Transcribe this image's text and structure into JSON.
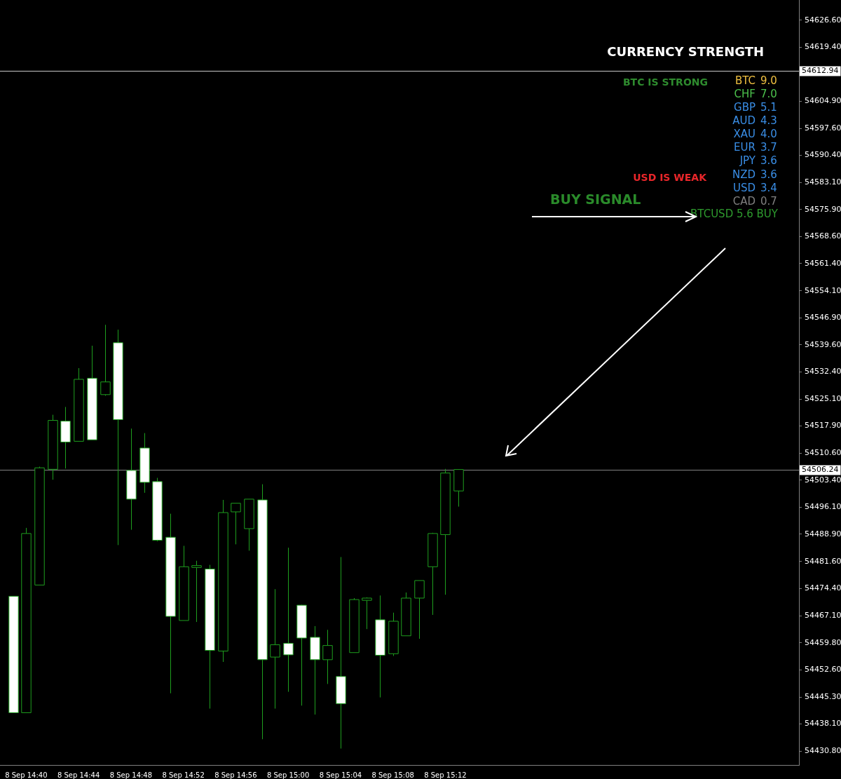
{
  "chart_data": {
    "type": "candlestick",
    "title": "CURRENCY STRENGTH",
    "x": [
      "--09-08T14:39",
      "--09-08T14:40",
      "--09-08T14:41",
      "--09-08T14:42",
      "--09-08T14:43",
      "--09-08T14:44",
      "--09-08T14:45",
      "--09-08T14:46",
      "--09-08T14:47",
      "--09-08T14:48",
      "--09-08T14:49",
      "--09-08T14:50",
      "--09-08T14:51",
      "--09-08T14:52",
      "--09-08T14:53",
      "--09-08T14:54",
      "--09-08T14:55",
      "--09-08T14:56",
      "--09-08T14:57",
      "--09-08T14:58",
      "--09-08T14:59",
      "--09-08T15:00",
      "--09-08T15:01",
      "--09-08T15:02",
      "--09-08T15:03",
      "--09-08T15:04",
      "--09-08T15:05",
      "--09-08T15:06",
      "--09-08T15:07",
      "--09-08T15:08",
      "--09-08T15:09",
      "--09-08T15:10",
      "--09-08T15:11",
      "--09-08T15:12",
      "--09-08T15:13"
    ],
    "ohlc": [
      [
        54472.3,
        54472.3,
        54441.0,
        54441.1
      ],
      [
        54441.1,
        54490.6,
        54441.1,
        54489.1
      ],
      [
        54475.3,
        54507.0,
        54475.3,
        54506.7
      ],
      [
        54506.3,
        54520.9,
        54503.5,
        54519.4
      ],
      [
        54519.2,
        54523.0,
        54506.5,
        54513.6
      ],
      [
        54513.8,
        54533.4,
        54513.8,
        54530.4
      ],
      [
        54530.7,
        54539.4,
        54514.2,
        54514.2
      ],
      [
        54526.3,
        54545.0,
        54526.0,
        54529.7
      ],
      [
        54540.2,
        54543.7,
        54486.0,
        54519.6
      ],
      [
        54506.0,
        54517.2,
        54490.1,
        54498.3
      ],
      [
        54512.0,
        54516.0,
        54500.0,
        54502.8
      ],
      [
        54503.0,
        54504.0,
        54487.0,
        54487.3
      ],
      [
        54488.1,
        54494.4,
        54446.3,
        54466.9
      ],
      [
        54465.8,
        54485.8,
        54465.8,
        54480.2
      ],
      [
        54480.0,
        54481.8,
        54465.4,
        54480.5
      ],
      [
        54479.6,
        54480.7,
        54442.2,
        54457.8
      ],
      [
        54457.6,
        54498.1,
        54454.7,
        54494.7
      ],
      [
        54494.9,
        54497.2,
        54486.2,
        54497.2
      ],
      [
        54490.4,
        54498.3,
        54484.5,
        54498.3
      ],
      [
        54498.1,
        54502.3,
        54434.0,
        54455.3
      ],
      [
        54456.0,
        54474.2,
        54442.2,
        54459.3
      ],
      [
        54459.7,
        54485.3,
        54446.7,
        54456.6
      ],
      [
        54469.9,
        54470.0,
        54443.0,
        54461.1
      ],
      [
        54461.3,
        54464.3,
        54440.6,
        54455.3
      ],
      [
        54455.3,
        54463.3,
        54448.8,
        54459.1
      ],
      [
        54450.8,
        54482.8,
        54431.5,
        54443.5
      ],
      [
        54457.2,
        54471.8,
        54457.2,
        54471.4
      ],
      [
        54471.2,
        54472.0,
        54463.5,
        54471.8
      ],
      [
        54466.0,
        54472.5,
        54445.2,
        54456.5
      ],
      [
        54456.9,
        54467.9,
        54456.3,
        54465.6
      ],
      [
        54461.7,
        54473.3,
        54461.7,
        54471.8
      ],
      [
        54471.8,
        54476.5,
        54460.9,
        54476.5
      ],
      [
        54480.2,
        54489.3,
        54467.3,
        54489.1
      ],
      [
        54488.8,
        54506.4,
        54472.7,
        54505.3
      ],
      [
        54500.5,
        54506.24,
        54496.3,
        54506.24
      ]
    ],
    "color": "#1e9e1e",
    "colors": [
      "#ffffff",
      "#000000",
      "#000000",
      "#000000",
      "#ffffff",
      "#000000",
      "#ffffff",
      "#000000",
      "#ffffff",
      "#ffffff",
      "#ffffff",
      "#ffffff",
      "#ffffff",
      "#000000",
      "#000000",
      "#ffffff",
      "#000000",
      "#000000",
      "#000000",
      "#ffffff",
      "#000000",
      "#ffffff",
      "#ffffff",
      "#ffffff",
      "#000000",
      "#ffffff",
      "#000000",
      "#000000",
      "#ffffff",
      "#000000",
      "#000000",
      "#000000",
      "#000000",
      "#000000",
      "#000000"
    ],
    "xlim": [
      "--09-08T14:38",
      "--09-08T15:39"
    ],
    "xticks": [
      {
        "value": "--09-08T14:40",
        "label": "8 Sep 14:40"
      },
      {
        "value": "--09-08T14:44",
        "label": "8 Sep 14:44"
      },
      {
        "value": "--09-08T14:48",
        "label": "8 Sep 14:48"
      },
      {
        "value": "--09-08T14:52",
        "label": "8 Sep 14:52"
      },
      {
        "value": "--09-08T14:56",
        "label": "8 Sep 14:56"
      },
      {
        "value": "--09-08T15:00",
        "label": "8 Sep 15:00"
      },
      {
        "value": "--09-08T15:04",
        "label": "8 Sep 15:04"
      },
      {
        "value": "--09-08T15:08",
        "label": "8 Sep 15:08"
      },
      {
        "value": "--09-08T15:12",
        "label": "8 Sep 15:12"
      }
    ],
    "ylim": [
      54427.1,
      54632.0
    ],
    "yticks": [
      {
        "value": 54626.6,
        "label": "54626.60"
      },
      {
        "value": 54619.4,
        "label": "54619.40"
      },
      {
        "value": 54604.9,
        "label": "54604.90"
      },
      {
        "value": 54597.6,
        "label": "54597.60"
      },
      {
        "value": 54590.4,
        "label": "54590.40"
      },
      {
        "value": 54583.1,
        "label": "54583.10"
      },
      {
        "value": 54575.9,
        "label": "54575.90"
      },
      {
        "value": 54568.6,
        "label": "54568.60"
      },
      {
        "value": 54561.4,
        "label": "54561.40"
      },
      {
        "value": 54554.1,
        "label": "54554.10"
      },
      {
        "value": 54546.9,
        "label": "54546.90"
      },
      {
        "value": 54539.6,
        "label": "54539.60"
      },
      {
        "value": 54532.4,
        "label": "54532.40"
      },
      {
        "value": 54525.1,
        "label": "54525.10"
      },
      {
        "value": 54517.9,
        "label": "54517.90"
      },
      {
        "value": 54510.6,
        "label": "54510.60"
      },
      {
        "value": 54503.4,
        "label": "54503.40"
      },
      {
        "value": 54496.1,
        "label": "54496.10"
      },
      {
        "value": 54488.9,
        "label": "54488.90"
      },
      {
        "value": 54481.6,
        "label": "54481.60"
      },
      {
        "value": 54474.4,
        "label": "54474.40"
      },
      {
        "value": 54467.1,
        "label": "54467.10"
      },
      {
        "value": 54459.8,
        "label": "54459.80"
      },
      {
        "value": 54452.6,
        "label": "54452.60"
      },
      {
        "value": 54445.3,
        "label": "54445.30"
      },
      {
        "value": 54438.1,
        "label": "54438.10"
      },
      {
        "value": 54430.8,
        "label": "54430.80"
      }
    ],
    "ref_lines": [
      {
        "axis": "y",
        "value": 54612.94,
        "label": "54612.94",
        "color": "#c8c8c8"
      },
      {
        "axis": "y",
        "value": 54506.24,
        "label": "54506.24",
        "color": "#808080"
      }
    ],
    "annotations": [
      "BTC IS STRONG",
      "USD IS WEAK",
      "BUY SIGNAL",
      "BTC 9.0",
      "CHF 7.0",
      "GBP 5.1",
      "AUD 4.3",
      "XAU 4.0",
      "EUR 3.7",
      "JPY 3.6",
      "NZD 3.6",
      "USD 3.4",
      "CAD 0.7",
      "BTCUSD 5.6 BUY"
    ]
  }
}
